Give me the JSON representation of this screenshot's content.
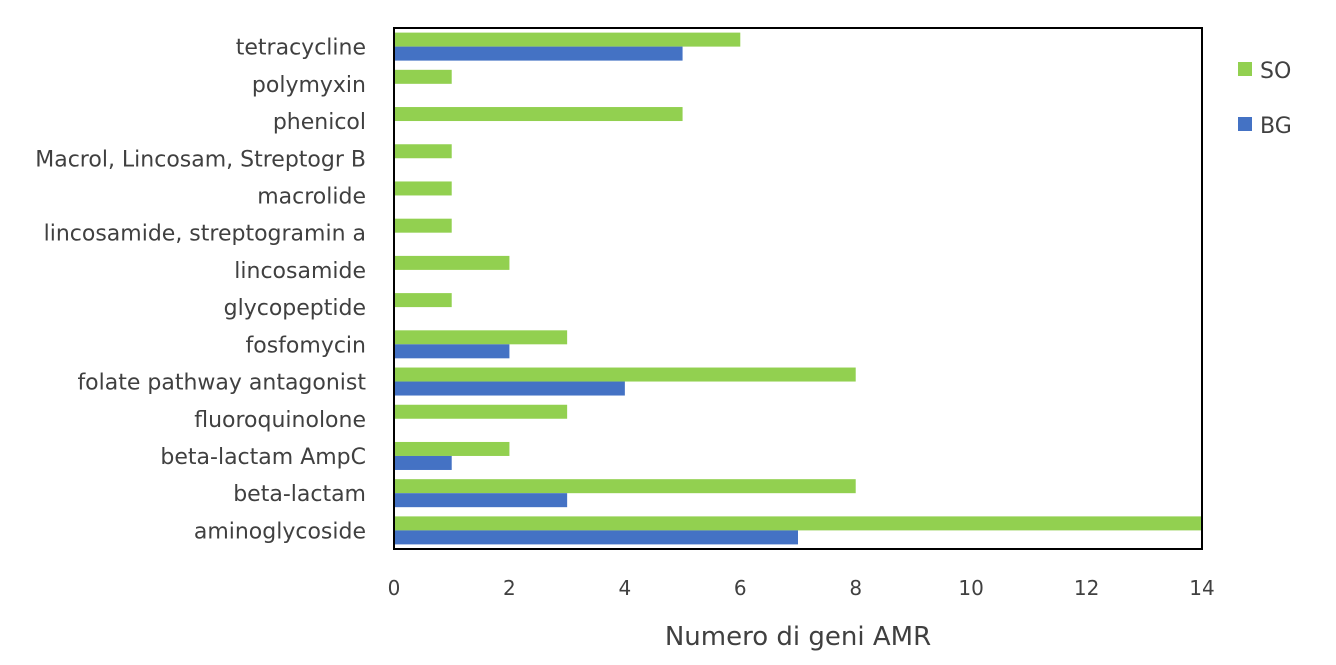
{
  "chart_data": {
    "type": "bar",
    "orientation": "horizontal",
    "title": "",
    "xlabel": "Numero di geni AMR",
    "ylabel": "",
    "xlim": [
      0,
      14
    ],
    "x_ticks": [
      0,
      2,
      4,
      6,
      8,
      10,
      12,
      14
    ],
    "grid": false,
    "legend_position": "right",
    "categories": [
      "tetracycline",
      "polymyxin",
      "phenicol",
      "Macrol, Lincosam, Streptogr B",
      "macrolide",
      "lincosamide, streptogramin a",
      "lincosamide",
      "glycopeptide",
      "fosfomycin",
      "folate pathway antagonist",
      "fluoroquinolone",
      "beta-lactam AmpC",
      "beta-lactam",
      "aminoglycoside"
    ],
    "series": [
      {
        "name": "SO",
        "color": "#92d050",
        "values": [
          6,
          1,
          5,
          1,
          1,
          1,
          2,
          1,
          3,
          8,
          3,
          2,
          8,
          14
        ]
      },
      {
        "name": "BG",
        "color": "#4472c4",
        "values": [
          5,
          0,
          0,
          0,
          0,
          0,
          0,
          0,
          2,
          4,
          0,
          1,
          3,
          7
        ]
      }
    ]
  }
}
